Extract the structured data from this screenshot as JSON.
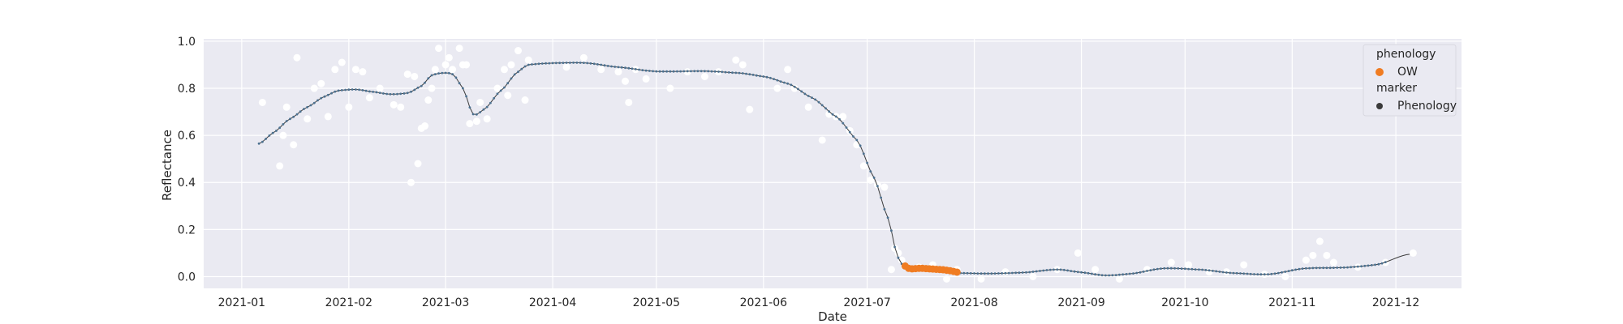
{
  "chart_data": {
    "type": "scatter",
    "title": "",
    "xlabel": "Date",
    "ylabel": "Reflectance",
    "x_type": "date",
    "xlim": [
      "2020-12-21",
      "2021-12-20"
    ],
    "ylim": [
      -0.05,
      1.01
    ],
    "grid": true,
    "x_ticks": [
      {
        "date": "2021-01-01",
        "label": "2021-01"
      },
      {
        "date": "2021-02-01",
        "label": "2021-02"
      },
      {
        "date": "2021-03-01",
        "label": "2021-03"
      },
      {
        "date": "2021-04-01",
        "label": "2021-04"
      },
      {
        "date": "2021-05-01",
        "label": "2021-05"
      },
      {
        "date": "2021-06-01",
        "label": "2021-06"
      },
      {
        "date": "2021-07-01",
        "label": "2021-07"
      },
      {
        "date": "2021-08-01",
        "label": "2021-08"
      },
      {
        "date": "2021-09-01",
        "label": "2021-09"
      },
      {
        "date": "2021-10-01",
        "label": "2021-10"
      },
      {
        "date": "2021-11-01",
        "label": "2021-11"
      },
      {
        "date": "2021-12-01",
        "label": "2021-12"
      }
    ],
    "y_ticks": [
      {
        "value": 0.0,
        "label": "0.0"
      },
      {
        "value": 0.2,
        "label": "0.2"
      },
      {
        "value": 0.4,
        "label": "0.4"
      },
      {
        "value": 0.6,
        "label": "0.6"
      },
      {
        "value": 0.8,
        "label": "0.8"
      },
      {
        "value": 1.0,
        "label": "1.0"
      }
    ],
    "legend": {
      "placement": "top-right",
      "groups": [
        {
          "title": "phenology",
          "entries": [
            {
              "label": "OW",
              "color": "#f07c22"
            }
          ]
        },
        {
          "title": "marker",
          "entries": [
            {
              "label": "Phenology",
              "color": "#3a3a3a"
            }
          ]
        }
      ]
    },
    "colors": {
      "background": "#eaeaf2",
      "grid": "#ffffff",
      "observations": "#ffffff",
      "smooth_line": "#3c3c3c",
      "smooth_markers": "#4c7190",
      "ow": "#f07c22"
    },
    "smooth_curve": [
      [
        "2021-01-06",
        0.565
      ],
      [
        "2021-01-10",
        0.61
      ],
      [
        "2021-01-15",
        0.67
      ],
      [
        "2021-01-20",
        0.72
      ],
      [
        "2021-01-25",
        0.765
      ],
      [
        "2021-01-29",
        0.79
      ],
      [
        "2021-02-03",
        0.795
      ],
      [
        "2021-02-08",
        0.785
      ],
      [
        "2021-02-13",
        0.775
      ],
      [
        "2021-02-18",
        0.78
      ],
      [
        "2021-02-22",
        0.81
      ],
      [
        "2021-02-25",
        0.855
      ],
      [
        "2021-02-28",
        0.865
      ],
      [
        "2021-03-03",
        0.86
      ],
      [
        "2021-03-06",
        0.8
      ],
      [
        "2021-03-09",
        0.69
      ],
      [
        "2021-03-12",
        0.71
      ],
      [
        "2021-03-17",
        0.79
      ],
      [
        "2021-03-22",
        0.87
      ],
      [
        "2021-03-25",
        0.9
      ],
      [
        "2021-04-01",
        0.907
      ],
      [
        "2021-04-10",
        0.908
      ],
      [
        "2021-04-20",
        0.89
      ],
      [
        "2021-05-01",
        0.872
      ],
      [
        "2021-05-15",
        0.873
      ],
      [
        "2021-05-25",
        0.865
      ],
      [
        "2021-06-01",
        0.85
      ],
      [
        "2021-06-08",
        0.82
      ],
      [
        "2021-06-15",
        0.76
      ],
      [
        "2021-06-22",
        0.68
      ],
      [
        "2021-06-28",
        0.58
      ],
      [
        "2021-07-03",
        0.42
      ],
      [
        "2021-07-07",
        0.25
      ],
      [
        "2021-07-10",
        0.08
      ],
      [
        "2021-07-12",
        0.04
      ],
      [
        "2021-07-16",
        0.035
      ],
      [
        "2021-07-20",
        0.03
      ],
      [
        "2021-07-24",
        0.022
      ],
      [
        "2021-07-28",
        0.015
      ],
      [
        "2021-08-05",
        0.013
      ],
      [
        "2021-08-15",
        0.017
      ],
      [
        "2021-08-25",
        0.03
      ],
      [
        "2021-09-01",
        0.018
      ],
      [
        "2021-09-08",
        0.005
      ],
      [
        "2021-09-15",
        0.012
      ],
      [
        "2021-09-25",
        0.035
      ],
      [
        "2021-10-05",
        0.03
      ],
      [
        "2021-10-15",
        0.015
      ],
      [
        "2021-10-25",
        0.01
      ],
      [
        "2021-11-05",
        0.035
      ],
      [
        "2021-11-15",
        0.038
      ],
      [
        "2021-11-25",
        0.05
      ],
      [
        "2021-12-05",
        0.095
      ]
    ],
    "ow_points": [
      [
        "2021-07-12",
        0.045
      ],
      [
        "2021-07-13",
        0.035
      ],
      [
        "2021-07-14",
        0.033
      ],
      [
        "2021-07-15",
        0.034
      ],
      [
        "2021-07-16",
        0.035
      ],
      [
        "2021-07-17",
        0.035
      ],
      [
        "2021-07-18",
        0.034
      ],
      [
        "2021-07-19",
        0.033
      ],
      [
        "2021-07-20",
        0.032
      ],
      [
        "2021-07-21",
        0.031
      ],
      [
        "2021-07-22",
        0.03
      ],
      [
        "2021-07-23",
        0.029
      ],
      [
        "2021-07-24",
        0.027
      ],
      [
        "2021-07-25",
        0.025
      ],
      [
        "2021-07-26",
        0.022
      ],
      [
        "2021-07-27",
        0.019
      ]
    ],
    "observations": [
      [
        "2021-01-07",
        0.74
      ],
      [
        "2021-01-12",
        0.47
      ],
      [
        "2021-01-13",
        0.6
      ],
      [
        "2021-01-14",
        0.72
      ],
      [
        "2021-01-16",
        0.56
      ],
      [
        "2021-01-17",
        0.93
      ],
      [
        "2021-01-20",
        0.67
      ],
      [
        "2021-01-22",
        0.8
      ],
      [
        "2021-01-24",
        0.82
      ],
      [
        "2021-01-26",
        0.68
      ],
      [
        "2021-01-28",
        0.88
      ],
      [
        "2021-01-30",
        0.91
      ],
      [
        "2021-02-01",
        0.72
      ],
      [
        "2021-02-03",
        0.88
      ],
      [
        "2021-02-05",
        0.87
      ],
      [
        "2021-02-07",
        0.76
      ],
      [
        "2021-02-10",
        0.8
      ],
      [
        "2021-02-14",
        0.73
      ],
      [
        "2021-02-16",
        0.72
      ],
      [
        "2021-02-18",
        0.86
      ],
      [
        "2021-02-19",
        0.4
      ],
      [
        "2021-02-20",
        0.85
      ],
      [
        "2021-02-21",
        0.48
      ],
      [
        "2021-02-22",
        0.63
      ],
      [
        "2021-02-23",
        0.64
      ],
      [
        "2021-02-24",
        0.75
      ],
      [
        "2021-02-25",
        0.8
      ],
      [
        "2021-02-26",
        0.88
      ],
      [
        "2021-02-27",
        0.97
      ],
      [
        "2021-03-01",
        0.9
      ],
      [
        "2021-03-02",
        0.93
      ],
      [
        "2021-03-03",
        0.88
      ],
      [
        "2021-03-05",
        0.97
      ],
      [
        "2021-03-06",
        0.9
      ],
      [
        "2021-03-07",
        0.9
      ],
      [
        "2021-03-08",
        0.65
      ],
      [
        "2021-03-10",
        0.66
      ],
      [
        "2021-03-11",
        0.74
      ],
      [
        "2021-03-13",
        0.67
      ],
      [
        "2021-03-16",
        0.8
      ],
      [
        "2021-03-18",
        0.88
      ],
      [
        "2021-03-19",
        0.77
      ],
      [
        "2021-03-20",
        0.9
      ],
      [
        "2021-03-22",
        0.96
      ],
      [
        "2021-03-24",
        0.75
      ],
      [
        "2021-03-25",
        0.92
      ],
      [
        "2021-04-05",
        0.89
      ],
      [
        "2021-04-10",
        0.93
      ],
      [
        "2021-04-15",
        0.88
      ],
      [
        "2021-04-20",
        0.87
      ],
      [
        "2021-04-22",
        0.83
      ],
      [
        "2021-04-23",
        0.74
      ],
      [
        "2021-04-25",
        0.88
      ],
      [
        "2021-04-28",
        0.84
      ],
      [
        "2021-05-05",
        0.8
      ],
      [
        "2021-05-10",
        0.87
      ],
      [
        "2021-05-15",
        0.85
      ],
      [
        "2021-05-19",
        0.87
      ],
      [
        "2021-05-24",
        0.92
      ],
      [
        "2021-05-26",
        0.9
      ],
      [
        "2021-05-28",
        0.71
      ],
      [
        "2021-06-05",
        0.8
      ],
      [
        "2021-06-08",
        0.88
      ],
      [
        "2021-06-10",
        0.8
      ],
      [
        "2021-06-14",
        0.72
      ],
      [
        "2021-06-18",
        0.58
      ],
      [
        "2021-06-20",
        0.69
      ],
      [
        "2021-06-22",
        0.68
      ],
      [
        "2021-06-24",
        0.68
      ],
      [
        "2021-06-26",
        0.62
      ],
      [
        "2021-06-28",
        0.56
      ],
      [
        "2021-06-30",
        0.47
      ],
      [
        "2021-07-02",
        0.41
      ],
      [
        "2021-07-04",
        0.39
      ],
      [
        "2021-07-06",
        0.38
      ],
      [
        "2021-07-08",
        0.03
      ],
      [
        "2021-07-09",
        0.12
      ],
      [
        "2021-07-10",
        0.1
      ],
      [
        "2021-07-11",
        0.07
      ],
      [
        "2021-07-16",
        0.04
      ],
      [
        "2021-07-20",
        0.05
      ],
      [
        "2021-07-24",
        -0.01
      ],
      [
        "2021-07-27",
        0.03
      ],
      [
        "2021-08-03",
        -0.01
      ],
      [
        "2021-08-10",
        0.02
      ],
      [
        "2021-08-18",
        0.0
      ],
      [
        "2021-08-25",
        0.03
      ],
      [
        "2021-08-31",
        0.1
      ],
      [
        "2021-09-05",
        0.03
      ],
      [
        "2021-09-12",
        -0.01
      ],
      [
        "2021-09-20",
        0.03
      ],
      [
        "2021-09-27",
        0.06
      ],
      [
        "2021-10-02",
        0.05
      ],
      [
        "2021-10-08",
        0.02
      ],
      [
        "2021-10-13",
        0.02
      ],
      [
        "2021-10-18",
        0.05
      ],
      [
        "2021-10-24",
        0.01
      ],
      [
        "2021-10-30",
        0.0
      ],
      [
        "2021-11-05",
        0.07
      ],
      [
        "2021-11-07",
        0.09
      ],
      [
        "2021-11-09",
        0.15
      ],
      [
        "2021-11-11",
        0.09
      ],
      [
        "2021-11-13",
        0.06
      ],
      [
        "2021-11-20",
        0.04
      ],
      [
        "2021-11-28",
        0.06
      ],
      [
        "2021-12-06",
        0.1
      ]
    ]
  }
}
